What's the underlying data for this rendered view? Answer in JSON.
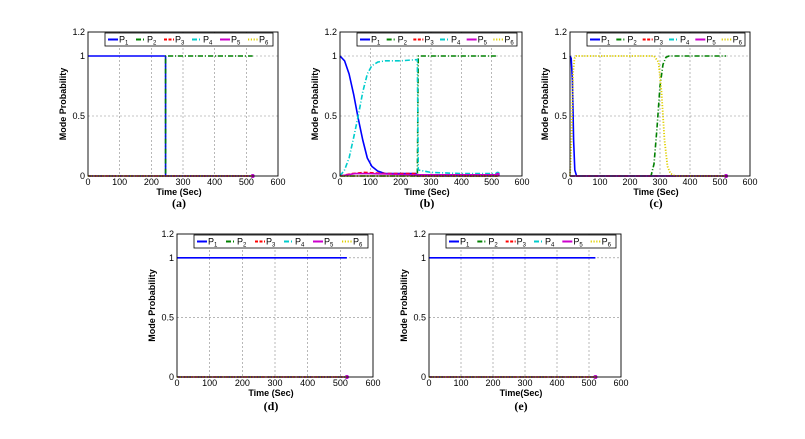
{
  "chart_data": [
    {
      "type": "line",
      "caption": "(a)",
      "xlabel": "Time (Sec)",
      "ylabel": "Mode Probability",
      "xlim": [
        0,
        600
      ],
      "ylim": [
        0,
        1.2
      ],
      "xticks": [
        "0",
        "100",
        "200",
        "300",
        "400",
        "500",
        "600"
      ],
      "yticks": [
        "0",
        "0.5",
        "1",
        "1.2"
      ],
      "legend": {
        "entries": [
          {
            "text": "P",
            "sub": "1"
          },
          {
            "text": "P",
            "sub": "2"
          },
          {
            "text": "P",
            "sub": "3"
          },
          {
            "text": "P",
            "sub": "4"
          },
          {
            "text": "P",
            "sub": "5"
          },
          {
            "text": "P",
            "sub": "6"
          }
        ]
      },
      "series": [
        {
          "name": "P1",
          "color": "#0000ff",
          "style": "solid",
          "points": [
            [
              0,
              1
            ],
            [
              245,
              1
            ],
            [
              245,
              0
            ],
            [
              520,
              0
            ]
          ]
        },
        {
          "name": "P2",
          "color": "#008000",
          "style": "dashdot",
          "points": [
            [
              0,
              0
            ],
            [
              245,
              0
            ],
            [
              245,
              1
            ],
            [
              520,
              1
            ]
          ]
        },
        {
          "name": "P3",
          "color": "#ff0000",
          "style": "dashed",
          "points": [
            [
              0,
              0
            ],
            [
              520,
              0
            ]
          ]
        },
        {
          "name": "P4",
          "color": "#00cccc",
          "style": "dashdot",
          "points": [
            [
              0,
              0
            ],
            [
              520,
              0
            ]
          ]
        },
        {
          "name": "P5",
          "color": "#cc00cc",
          "style": "solid",
          "points": [
            [
              0,
              0
            ],
            [
              520,
              0
            ]
          ]
        },
        {
          "name": "P6",
          "color": "#e0d000",
          "style": "dotted",
          "points": [
            [
              0,
              0
            ],
            [
              520,
              0
            ]
          ]
        }
      ]
    },
    {
      "type": "line",
      "caption": "(b)",
      "xlabel": "Time (Sec)",
      "ylabel": "Mode Probability",
      "xlim": [
        0,
        600
      ],
      "ylim": [
        0,
        1.2
      ],
      "xticks": [
        "0",
        "100",
        "200",
        "300",
        "400",
        "500",
        "600"
      ],
      "yticks": [
        "0",
        "0.5",
        "1",
        "1.2"
      ],
      "legend": {
        "entries": [
          {
            "text": "P",
            "sub": "1"
          },
          {
            "text": "P",
            "sub": "2"
          },
          {
            "text": "P",
            "sub": "3"
          },
          {
            "text": "P",
            "sub": "4"
          },
          {
            "text": "P",
            "sub": "5"
          },
          {
            "text": "P",
            "sub": "6"
          }
        ]
      },
      "series": [
        {
          "name": "P1",
          "color": "#0000ff",
          "style": "solid",
          "points": [
            [
              0,
              1
            ],
            [
              15,
              0.96
            ],
            [
              30,
              0.85
            ],
            [
              45,
              0.68
            ],
            [
              60,
              0.48
            ],
            [
              75,
              0.3
            ],
            [
              90,
              0.15
            ],
            [
              105,
              0.08
            ],
            [
              125,
              0.04
            ],
            [
              150,
              0.02
            ],
            [
              250,
              0.02
            ],
            [
              255,
              0
            ],
            [
              520,
              0
            ]
          ]
        },
        {
          "name": "P2",
          "color": "#008000",
          "style": "dashdot",
          "points": [
            [
              0,
              0
            ],
            [
              255,
              0
            ],
            [
              258,
              1
            ],
            [
              520,
              1
            ]
          ]
        },
        {
          "name": "P3",
          "color": "#ff0000",
          "style": "dashed",
          "points": [
            [
              0,
              0
            ],
            [
              40,
              0.02
            ],
            [
              80,
              0.03
            ],
            [
              150,
              0.02
            ],
            [
              255,
              0.02
            ],
            [
              258,
              0
            ],
            [
              520,
              0
            ]
          ]
        },
        {
          "name": "P4",
          "color": "#00cccc",
          "style": "dashdot",
          "points": [
            [
              0,
              0
            ],
            [
              15,
              0.05
            ],
            [
              30,
              0.15
            ],
            [
              45,
              0.32
            ],
            [
              60,
              0.5
            ],
            [
              75,
              0.7
            ],
            [
              90,
              0.85
            ],
            [
              105,
              0.92
            ],
            [
              125,
              0.95
            ],
            [
              150,
              0.96
            ],
            [
              200,
              0.96
            ],
            [
              255,
              0.97
            ],
            [
              258,
              0.05
            ],
            [
              300,
              0.03
            ],
            [
              400,
              0.02
            ],
            [
              520,
              0.02
            ]
          ]
        },
        {
          "name": "P5",
          "color": "#cc00cc",
          "style": "solid",
          "points": [
            [
              0,
              0
            ],
            [
              50,
              0.02
            ],
            [
              100,
              0.02
            ],
            [
              255,
              0.01
            ],
            [
              520,
              0.01
            ]
          ]
        },
        {
          "name": "P6",
          "color": "#e0d000",
          "style": "dotted",
          "points": [
            [
              0,
              0
            ],
            [
              520,
              0
            ]
          ]
        }
      ]
    },
    {
      "type": "line",
      "caption": "(c)",
      "xlabel": "Time (Sec)",
      "ylabel": "Mode Probability",
      "xlim": [
        0,
        600
      ],
      "ylim": [
        0,
        1.2
      ],
      "xticks": [
        "0",
        "100",
        "200",
        "300",
        "400",
        "500",
        "600"
      ],
      "yticks": [
        "0",
        "0.5",
        "1",
        "1.2"
      ],
      "legend": {
        "entries": [
          {
            "text": "P",
            "sub": "1"
          },
          {
            "text": "P",
            "sub": "2"
          },
          {
            "text": "P",
            "sub": "3"
          },
          {
            "text": "P",
            "sub": "4"
          },
          {
            "text": "P",
            "sub": "5"
          },
          {
            "text": "P",
            "sub": "6"
          }
        ]
      },
      "series": [
        {
          "name": "P1",
          "color": "#0000ff",
          "style": "solid",
          "points": [
            [
              0,
              1
            ],
            [
              4,
              0.98
            ],
            [
              8,
              0.8
            ],
            [
              12,
              0.3
            ],
            [
              16,
              0.05
            ],
            [
              22,
              0
            ],
            [
              520,
              0
            ]
          ]
        },
        {
          "name": "P2",
          "color": "#008000",
          "style": "dashdot",
          "points": [
            [
              0,
              0
            ],
            [
              270,
              0
            ],
            [
              280,
              0.1
            ],
            [
              290,
              0.4
            ],
            [
              300,
              0.75
            ],
            [
              310,
              0.93
            ],
            [
              320,
              0.99
            ],
            [
              330,
              1
            ],
            [
              520,
              1
            ]
          ]
        },
        {
          "name": "P3",
          "color": "#ff0000",
          "style": "dashed",
          "points": [
            [
              0,
              0
            ],
            [
              520,
              0
            ]
          ]
        },
        {
          "name": "P4",
          "color": "#00cccc",
          "style": "dashdot",
          "points": [
            [
              0,
              0
            ],
            [
              520,
              0
            ]
          ]
        },
        {
          "name": "P5",
          "color": "#cc00cc",
          "style": "solid",
          "points": [
            [
              0,
              0
            ],
            [
              520,
              0
            ]
          ]
        },
        {
          "name": "P6",
          "color": "#e0d000",
          "style": "dotted",
          "points": [
            [
              0,
              0
            ],
            [
              5,
              0.3
            ],
            [
              10,
              0.85
            ],
            [
              15,
              0.98
            ],
            [
              20,
              1
            ],
            [
              280,
              1
            ],
            [
              295,
              0.95
            ],
            [
              305,
              0.7
            ],
            [
              315,
              0.3
            ],
            [
              325,
              0.08
            ],
            [
              335,
              0.02
            ],
            [
              350,
              0
            ],
            [
              520,
              0
            ]
          ]
        }
      ]
    },
    {
      "type": "line",
      "caption": "(d)",
      "xlabel": "Time (Sec)",
      "ylabel": "Mode Probability",
      "xlim": [
        0,
        600
      ],
      "ylim": [
        0,
        1.2
      ],
      "xticks": [
        "0",
        "100",
        "200",
        "300",
        "400",
        "500",
        "600"
      ],
      "yticks": [
        "0",
        "0.5",
        "1",
        "1.2"
      ],
      "legend": {
        "entries": [
          {
            "text": "P",
            "sub": "1"
          },
          {
            "text": "P",
            "sub": "2"
          },
          {
            "text": "P",
            "sub": "3"
          },
          {
            "text": "P",
            "sub": "4"
          },
          {
            "text": "P",
            "sub": "5"
          },
          {
            "text": "P",
            "sub": "6"
          }
        ]
      },
      "series": [
        {
          "name": "P1",
          "color": "#0000ff",
          "style": "solid",
          "points": [
            [
              0,
              1
            ],
            [
              520,
              1
            ]
          ]
        },
        {
          "name": "P2",
          "color": "#008000",
          "style": "dashdot",
          "points": [
            [
              0,
              0
            ],
            [
              520,
              0
            ]
          ]
        },
        {
          "name": "P3",
          "color": "#ff0000",
          "style": "dashed",
          "points": [
            [
              0,
              0
            ],
            [
              520,
              0
            ]
          ]
        },
        {
          "name": "P4",
          "color": "#00cccc",
          "style": "dashdot",
          "points": [
            [
              0,
              0
            ],
            [
              520,
              0
            ]
          ]
        },
        {
          "name": "P5",
          "color": "#cc00cc",
          "style": "solid",
          "points": [
            [
              0,
              0
            ],
            [
              520,
              0
            ]
          ]
        },
        {
          "name": "P6",
          "color": "#e0d000",
          "style": "dotted",
          "points": [
            [
              0,
              0
            ],
            [
              520,
              0
            ]
          ]
        }
      ]
    },
    {
      "type": "line",
      "caption": "(e)",
      "xlabel": "Time(Sec)",
      "ylabel": "Mode Probability",
      "xlim": [
        0,
        600
      ],
      "ylim": [
        0,
        1.2
      ],
      "xticks": [
        "0",
        "100",
        "200",
        "300",
        "400",
        "500",
        "600"
      ],
      "yticks": [
        "0",
        "0.5",
        "1",
        "1.2"
      ],
      "legend": {
        "entries": [
          {
            "text": "P",
            "sub": "1"
          },
          {
            "text": "P",
            "sub": "2"
          },
          {
            "text": "P",
            "sub": "3"
          },
          {
            "text": "P",
            "sub": "4"
          },
          {
            "text": "P",
            "sub": "5"
          },
          {
            "text": "P",
            "sub": "6"
          }
        ]
      },
      "series": [
        {
          "name": "P1",
          "color": "#0000ff",
          "style": "solid",
          "points": [
            [
              0,
              1
            ],
            [
              520,
              1
            ]
          ]
        },
        {
          "name": "P2",
          "color": "#008000",
          "style": "dashdot",
          "points": [
            [
              0,
              0
            ],
            [
              520,
              0
            ]
          ]
        },
        {
          "name": "P3",
          "color": "#ff0000",
          "style": "dashed",
          "points": [
            [
              0,
              0
            ],
            [
              520,
              0
            ]
          ]
        },
        {
          "name": "P4",
          "color": "#00cccc",
          "style": "dashdot",
          "points": [
            [
              0,
              0
            ],
            [
              520,
              0
            ]
          ]
        },
        {
          "name": "P5",
          "color": "#cc00cc",
          "style": "solid",
          "points": [
            [
              0,
              0
            ],
            [
              520,
              0
            ]
          ]
        },
        {
          "name": "P6",
          "color": "#e0d000",
          "style": "dotted",
          "points": [
            [
              0,
              0
            ],
            [
              520,
              0
            ]
          ]
        }
      ]
    }
  ]
}
